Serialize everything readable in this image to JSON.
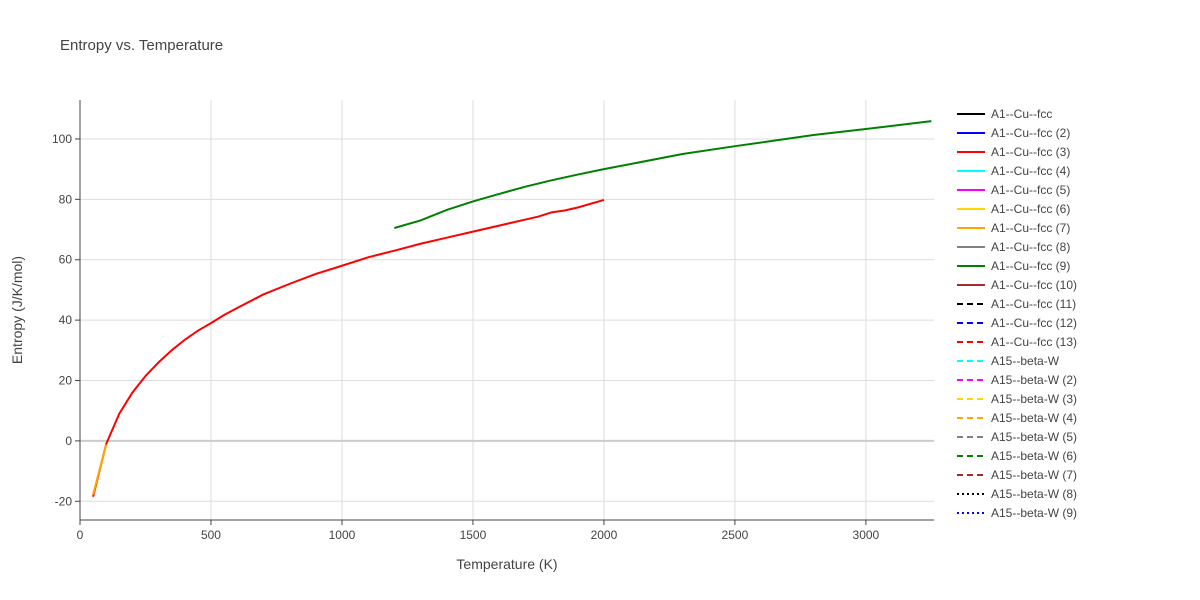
{
  "chart_data": {
    "type": "line",
    "title": "Entropy vs. Temperature",
    "xlabel": "Temperature (K)",
    "ylabel": "Entropy (J/K/mol)",
    "xlim": [
      0,
      3260
    ],
    "ylim": [
      -26.2,
      112.9
    ],
    "xticks": [
      0,
      500,
      1000,
      1500,
      2000,
      2500,
      3000
    ],
    "yticks": [
      -20,
      0,
      20,
      40,
      60,
      80,
      100
    ],
    "grid": true,
    "legend_position": "right",
    "series": [
      {
        "name": "A1--Cu--fcc",
        "color": "#000000",
        "dash": "solid",
        "x": [],
        "y": []
      },
      {
        "name": "A1--Cu--fcc (2)",
        "color": "#0000ff",
        "dash": "solid",
        "x": [],
        "y": []
      },
      {
        "name": "A1--Cu--fcc (3)",
        "color": "#ff0000",
        "dash": "solid",
        "x": [
          50,
          100,
          150,
          200,
          250,
          300,
          350,
          400,
          450,
          500,
          550,
          600,
          700,
          800,
          900,
          1000,
          1100,
          1200,
          1300,
          1400,
          1500,
          1600,
          1700,
          1750,
          1800,
          1850,
          1900,
          2000
        ],
        "y": [
          -18.5,
          -1,
          9,
          16,
          21.5,
          26,
          30,
          33.5,
          36.5,
          39,
          41.7,
          44,
          48.5,
          52,
          55.3,
          58,
          60.8,
          63,
          65.3,
          67.3,
          69.3,
          71.3,
          73.3,
          74.3,
          75.7,
          76.3,
          77.3,
          79.8
        ]
      },
      {
        "name": "A1--Cu--fcc (4)",
        "color": "#00ffff",
        "dash": "solid",
        "x": [],
        "y": []
      },
      {
        "name": "A1--Cu--fcc (5)",
        "color": "#ff00ff",
        "dash": "solid",
        "x": [],
        "y": []
      },
      {
        "name": "A1--Cu--fcc (6)",
        "color": "#ffd700",
        "dash": "solid",
        "x": [],
        "y": []
      },
      {
        "name": "A1--Cu--fcc (7)",
        "color": "#ffa500",
        "dash": "solid",
        "x": [
          50,
          100
        ],
        "y": [
          -17.8,
          -1.2
        ]
      },
      {
        "name": "A1--Cu--fcc (8)",
        "color": "#808080",
        "dash": "solid",
        "x": [],
        "y": []
      },
      {
        "name": "A1--Cu--fcc (9)",
        "color": "#008000",
        "dash": "solid",
        "x": [
          1200,
          1300,
          1400,
          1500,
          1600,
          1700,
          1800,
          1900,
          2000,
          2300,
          2500,
          2800,
          3000,
          3250
        ],
        "y": [
          70.5,
          73,
          76.5,
          79.3,
          81.8,
          84.2,
          86.3,
          88.2,
          90,
          95,
          97.6,
          101.3,
          103.3,
          105.9
        ]
      },
      {
        "name": "A1--Cu--fcc (10)",
        "color": "#a52a2a",
        "dash": "solid",
        "x": [],
        "y": []
      },
      {
        "name": "A1--Cu--fcc (11)",
        "color": "#000000",
        "dash": "dash",
        "x": [],
        "y": []
      },
      {
        "name": "A1--Cu--fcc (12)",
        "color": "#0000ff",
        "dash": "dash",
        "x": [],
        "y": []
      },
      {
        "name": "A1--Cu--fcc (13)",
        "color": "#ff0000",
        "dash": "dash",
        "x": [],
        "y": []
      },
      {
        "name": "A15--beta-W",
        "color": "#00ffff",
        "dash": "dash",
        "x": [],
        "y": []
      },
      {
        "name": "A15--beta-W (2)",
        "color": "#ff00ff",
        "dash": "dash",
        "x": [],
        "y": []
      },
      {
        "name": "A15--beta-W (3)",
        "color": "#ffd700",
        "dash": "dash",
        "x": [],
        "y": []
      },
      {
        "name": "A15--beta-W (4)",
        "color": "#ffa500",
        "dash": "dash",
        "x": [],
        "y": []
      },
      {
        "name": "A15--beta-W (5)",
        "color": "#808080",
        "dash": "dash",
        "x": [],
        "y": []
      },
      {
        "name": "A15--beta-W (6)",
        "color": "#008000",
        "dash": "dash",
        "x": [],
        "y": []
      },
      {
        "name": "A15--beta-W (7)",
        "color": "#a52a2a",
        "dash": "dash",
        "x": [],
        "y": []
      },
      {
        "name": "A15--beta-W (8)",
        "color": "#000000",
        "dash": "dot",
        "x": [],
        "y": []
      },
      {
        "name": "A15--beta-W (9)",
        "color": "#0000ff",
        "dash": "dot",
        "x": [],
        "y": []
      }
    ]
  }
}
